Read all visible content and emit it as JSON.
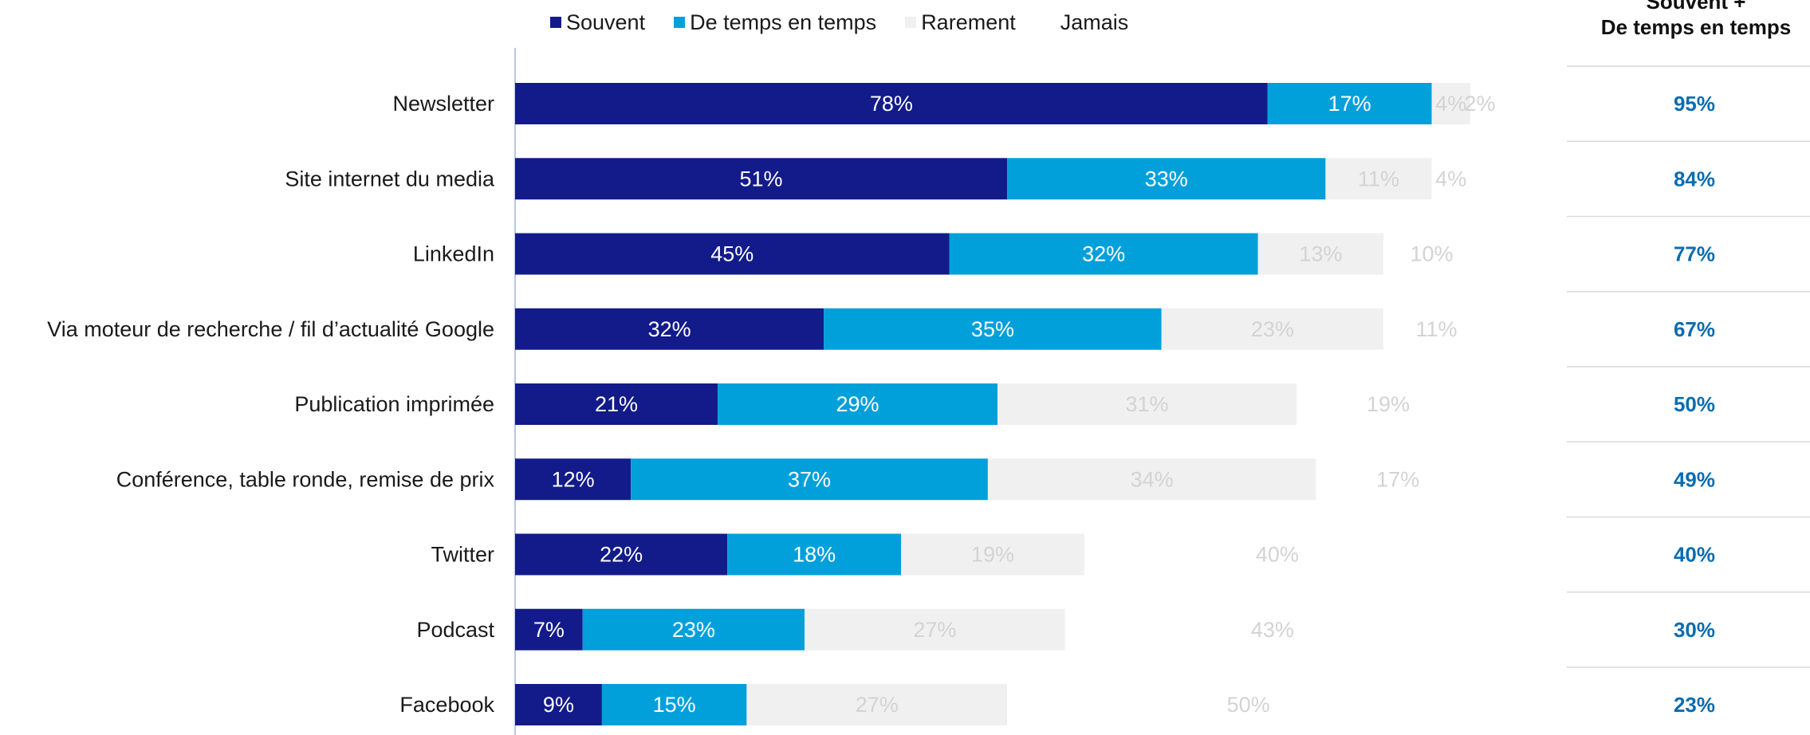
{
  "chart_data": {
    "type": "bar",
    "orientation": "horizontal",
    "stacked": true,
    "categories": [
      "Newsletter",
      "Site internet du media",
      "LinkedIn",
      "Via moteur de recherche / fil d’actualité Google",
      "Publication imprimée",
      "Conférence, table ronde, remise de prix",
      "Twitter",
      "Podcast",
      "Facebook"
    ],
    "series": [
      {
        "name": "Souvent",
        "values": [
          78,
          51,
          45,
          32,
          21,
          12,
          22,
          7,
          9
        ],
        "color": "#131b8a",
        "label_color": "#ffffff"
      },
      {
        "name": "De temps en temps",
        "values": [
          17,
          33,
          32,
          35,
          29,
          37,
          18,
          23,
          15
        ],
        "color": "#02a0db",
        "label_color": "#ffffff"
      },
      {
        "name": "Rarement",
        "values": [
          4,
          11,
          13,
          23,
          31,
          34,
          19,
          27,
          27
        ],
        "color": "#f0f0f0",
        "label_color": "#d3d3d3"
      },
      {
        "name": "Jamais",
        "values": [
          2,
          4,
          10,
          11,
          19,
          17,
          40,
          43,
          50
        ],
        "color": "#ffffff",
        "label_color": "#d3d3d3"
      }
    ],
    "value_suffix": "%",
    "xlim": [
      0,
      100
    ],
    "legend_position": "top",
    "side_column": {
      "title_line1": "Souvent +",
      "title_line2": "De temps en temps",
      "values": [
        "95%",
        "84%",
        "77%",
        "67%",
        "50%",
        "49%",
        "40%",
        "30%",
        "23%"
      ],
      "color": "#0a6cb0"
    }
  }
}
